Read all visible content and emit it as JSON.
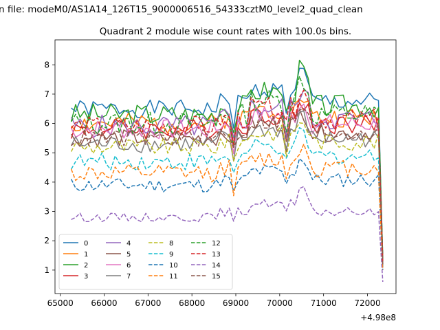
{
  "chart_data": {
    "type": "line",
    "suptitle": "n file: modeM0/AS1A14_126T15_9000006516_54333cztM0_level2_quad_clean",
    "title": "Quadrant 2 module wise count rates with 100.0s bins.",
    "xlabel": "",
    "ylabel": "",
    "x_offset_label": "+4.98e8",
    "xlim": [
      64880,
      72650
    ],
    "ylim": [
      0.2,
      8.85
    ],
    "xticks": [
      65000,
      66000,
      67000,
      68000,
      69000,
      70000,
      71000,
      72000
    ],
    "xtick_labels": [
      "65000",
      "66000",
      "67000",
      "68000",
      "69000",
      "70000",
      "71000",
      "72000"
    ],
    "yticks": [
      1,
      2,
      3,
      4,
      5,
      6,
      7,
      8
    ],
    "ytick_labels": [
      "1",
      "2",
      "3",
      "4",
      "5",
      "6",
      "7",
      "8"
    ],
    "x_start": 65250,
    "x_step": 100,
    "x_end": 72350,
    "legend_position": "lower left",
    "legend_columns": 4,
    "series": [
      {
        "name": "0",
        "color": "#1f77b4",
        "dash": "solid",
        "base": 6.5,
        "trend": 0.4,
        "amp": 0.3,
        "end": 1.3,
        "seed": 1
      },
      {
        "name": "1",
        "color": "#ff7f0e",
        "dash": "solid",
        "base": 6.0,
        "trend": 0.3,
        "amp": 0.35,
        "end": 1.2,
        "seed": 2
      },
      {
        "name": "2",
        "color": "#2ca02c",
        "dash": "solid",
        "base": 6.3,
        "trend": 0.5,
        "amp": 0.4,
        "end": 1.4,
        "seed": 3
      },
      {
        "name": "3",
        "color": "#d62728",
        "dash": "solid",
        "base": 5.8,
        "trend": 0.3,
        "amp": 0.35,
        "end": 1.3,
        "seed": 4
      },
      {
        "name": "4",
        "color": "#9467bd",
        "dash": "solid",
        "base": 5.9,
        "trend": 0.4,
        "amp": 0.4,
        "end": 1.3,
        "seed": 5
      },
      {
        "name": "5",
        "color": "#8c564b",
        "dash": "solid",
        "base": 5.5,
        "trend": 0.3,
        "amp": 0.3,
        "end": 1.2,
        "seed": 6
      },
      {
        "name": "6",
        "color": "#e377c2",
        "dash": "solid",
        "base": 5.8,
        "trend": 0.3,
        "amp": 0.35,
        "end": 1.3,
        "seed": 7
      },
      {
        "name": "7",
        "color": "#7f7f7f",
        "dash": "solid",
        "base": 5.3,
        "trend": 0.3,
        "amp": 0.3,
        "end": 1.2,
        "seed": 8
      },
      {
        "name": "8",
        "color": "#bcbd22",
        "dash": "dashed",
        "base": 5.2,
        "trend": 0.3,
        "amp": 0.3,
        "end": 1.2,
        "seed": 9
      },
      {
        "name": "9",
        "color": "#17becf",
        "dash": "dashed",
        "base": 4.7,
        "trend": 0.3,
        "amp": 0.3,
        "end": 1.1,
        "seed": 10
      },
      {
        "name": "10",
        "color": "#1f77b4",
        "dash": "dashed",
        "base": 3.9,
        "trend": 0.3,
        "amp": 0.25,
        "end": 1.0,
        "seed": 11
      },
      {
        "name": "11",
        "color": "#ff7f0e",
        "dash": "dashed",
        "base": 4.3,
        "trend": 0.3,
        "amp": 0.3,
        "end": 1.0,
        "seed": 12
      },
      {
        "name": "12",
        "color": "#2ca02c",
        "dash": "dashed",
        "base": 6.0,
        "trend": 0.5,
        "amp": 0.4,
        "end": 1.4,
        "seed": 13
      },
      {
        "name": "13",
        "color": "#d62728",
        "dash": "dashed",
        "base": 5.9,
        "trend": 0.4,
        "amp": 0.35,
        "end": 1.3,
        "seed": 14
      },
      {
        "name": "14",
        "color": "#9467bd",
        "dash": "dashed",
        "base": 2.8,
        "trend": 0.3,
        "amp": 0.15,
        "end": 0.6,
        "seed": 15
      },
      {
        "name": "15",
        "color": "#8c564b",
        "dash": "dashed",
        "base": 5.5,
        "trend": 0.35,
        "amp": 0.3,
        "end": 1.2,
        "seed": 16
      }
    ]
  }
}
